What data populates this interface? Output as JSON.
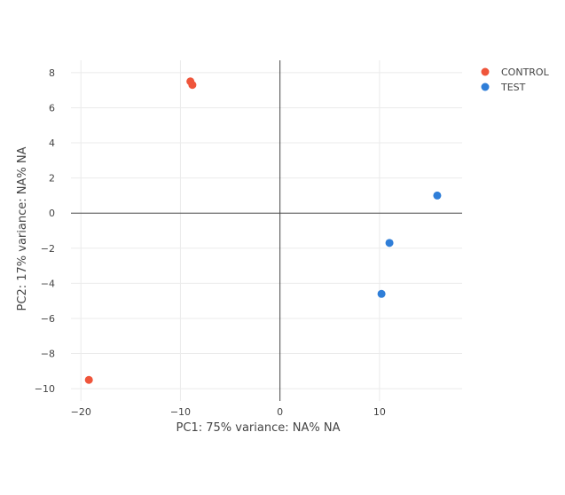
{
  "chart_data": {
    "type": "scatter",
    "xlabel": "PC1: 75% variance: NA% NA",
    "ylabel": "PC2: 17% variance: NA% NA",
    "xlim": [
      -21,
      18.3
    ],
    "ylim": [
      -10.7,
      8.7
    ],
    "x_ticks": [
      {
        "value": -20,
        "label": "−20"
      },
      {
        "value": -10,
        "label": "−10"
      },
      {
        "value": 0,
        "label": "0"
      },
      {
        "value": 10,
        "label": "10"
      }
    ],
    "y_ticks": [
      {
        "value": 8,
        "label": "8"
      },
      {
        "value": 6,
        "label": "6"
      },
      {
        "value": 4,
        "label": "4"
      },
      {
        "value": 2,
        "label": "2"
      },
      {
        "value": 0,
        "label": "0"
      },
      {
        "value": -2,
        "label": "−2"
      },
      {
        "value": -4,
        "label": "−4"
      },
      {
        "value": -6,
        "label": "−6"
      },
      {
        "value": -8,
        "label": "−8"
      },
      {
        "value": -10,
        "label": "−10"
      }
    ],
    "grid": true,
    "zero_lines": true,
    "legend_position": "top-right",
    "series": [
      {
        "name": "CONTROL",
        "color": "#ef553b",
        "points": [
          {
            "x": -19.2,
            "y": -9.5
          },
          {
            "x": -9.0,
            "y": 7.5
          },
          {
            "x": -8.8,
            "y": 7.3
          }
        ]
      },
      {
        "name": "TEST",
        "color": "#2f7ed8",
        "points": [
          {
            "x": 15.8,
            "y": 1.0
          },
          {
            "x": 11.0,
            "y": -1.7
          },
          {
            "x": 10.2,
            "y": -4.6
          }
        ]
      }
    ]
  }
}
